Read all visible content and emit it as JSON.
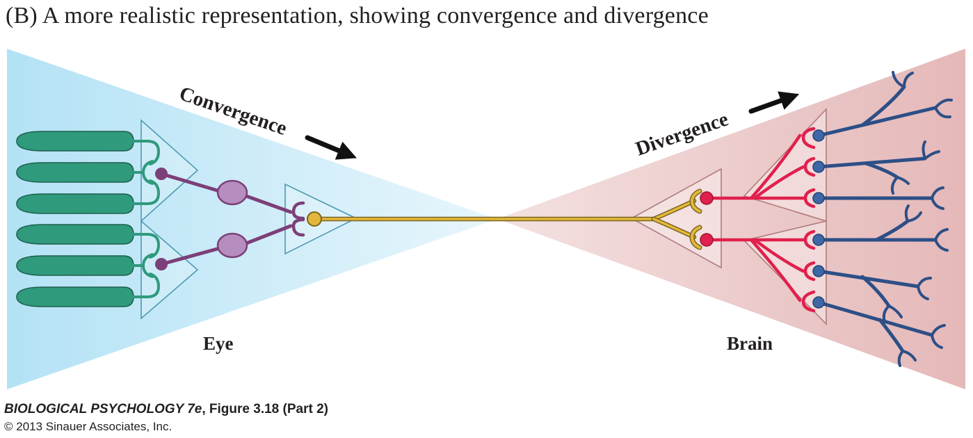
{
  "title": "(B)  A more realistic representation, showing convergence and divergence",
  "labels": {
    "convergence": "Convergence",
    "divergence": "Divergence",
    "eye": "Eye",
    "brain": "Brain"
  },
  "credit": {
    "book": "BIOLOGICAL PSYCHOLOGY 7e",
    "figure": ", Figure 3.18 (Part 2)",
    "copyright": "© 2013 Sinauer Associates, Inc."
  },
  "colors": {
    "eye_field": "#b6e3f5",
    "brain_field": "#e7bcbc",
    "receptor": "#2f9a7c",
    "bipolar": "#7c3f78",
    "bipolar_soma": "#b58dbf",
    "ganglion": "#e3b83a",
    "brain_neuron": "#e0204d",
    "brain_target": "#3e67a8"
  }
}
